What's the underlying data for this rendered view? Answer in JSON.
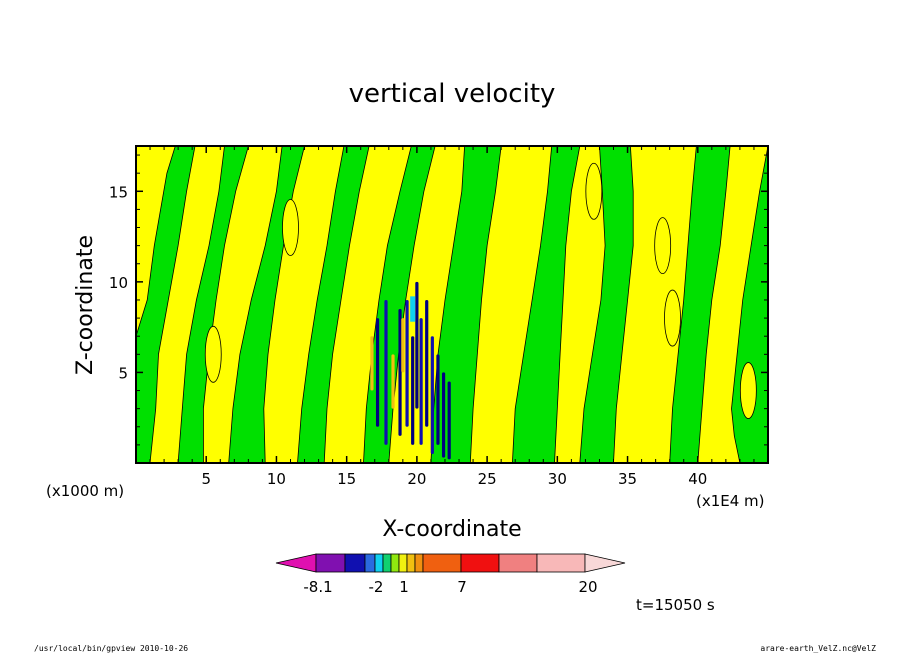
{
  "chart_data": {
    "type": "heatmap",
    "title": "vertical velocity",
    "xlabel": "X-coordinate",
    "ylabel": "Z-coordinate",
    "x_unit_left": "(x1000 m)",
    "x_unit_right": "(x1E4 m)",
    "xlim": [
      0,
      45
    ],
    "ylim": [
      0,
      17.5
    ],
    "x_ticks": [
      "5",
      "10",
      "15",
      "20",
      "25",
      "30",
      "35",
      "40"
    ],
    "y_ticks": [
      "5",
      "10",
      "15"
    ],
    "time_label": "t=15050 s",
    "colorbar": {
      "labels": [
        "-8.1",
        "-2",
        "1",
        "7",
        "20"
      ],
      "colors": [
        "#e010b0",
        "#8010b0",
        "#1010b0",
        "#2a6ae0",
        "#10d0f0",
        "#10d070",
        "#90e810",
        "#f0f010",
        "#f0c010",
        "#f09010",
        "#f06010",
        "#f01010",
        "#f08080",
        "#f8b8b8",
        "#f8d8d8"
      ]
    },
    "field_colors": {
      "negative": "#00e000",
      "positive": "#ffff00",
      "strong_negative": "#000080",
      "strong_negative_2": "#1010b0",
      "positive_2": "#f0c010",
      "cyan": "#10d0f0"
    }
  },
  "footer": {
    "left": "/usr/local/bin/gpview   2010-10-26",
    "right": "arare-earth_VelZ.nc@VelZ"
  }
}
